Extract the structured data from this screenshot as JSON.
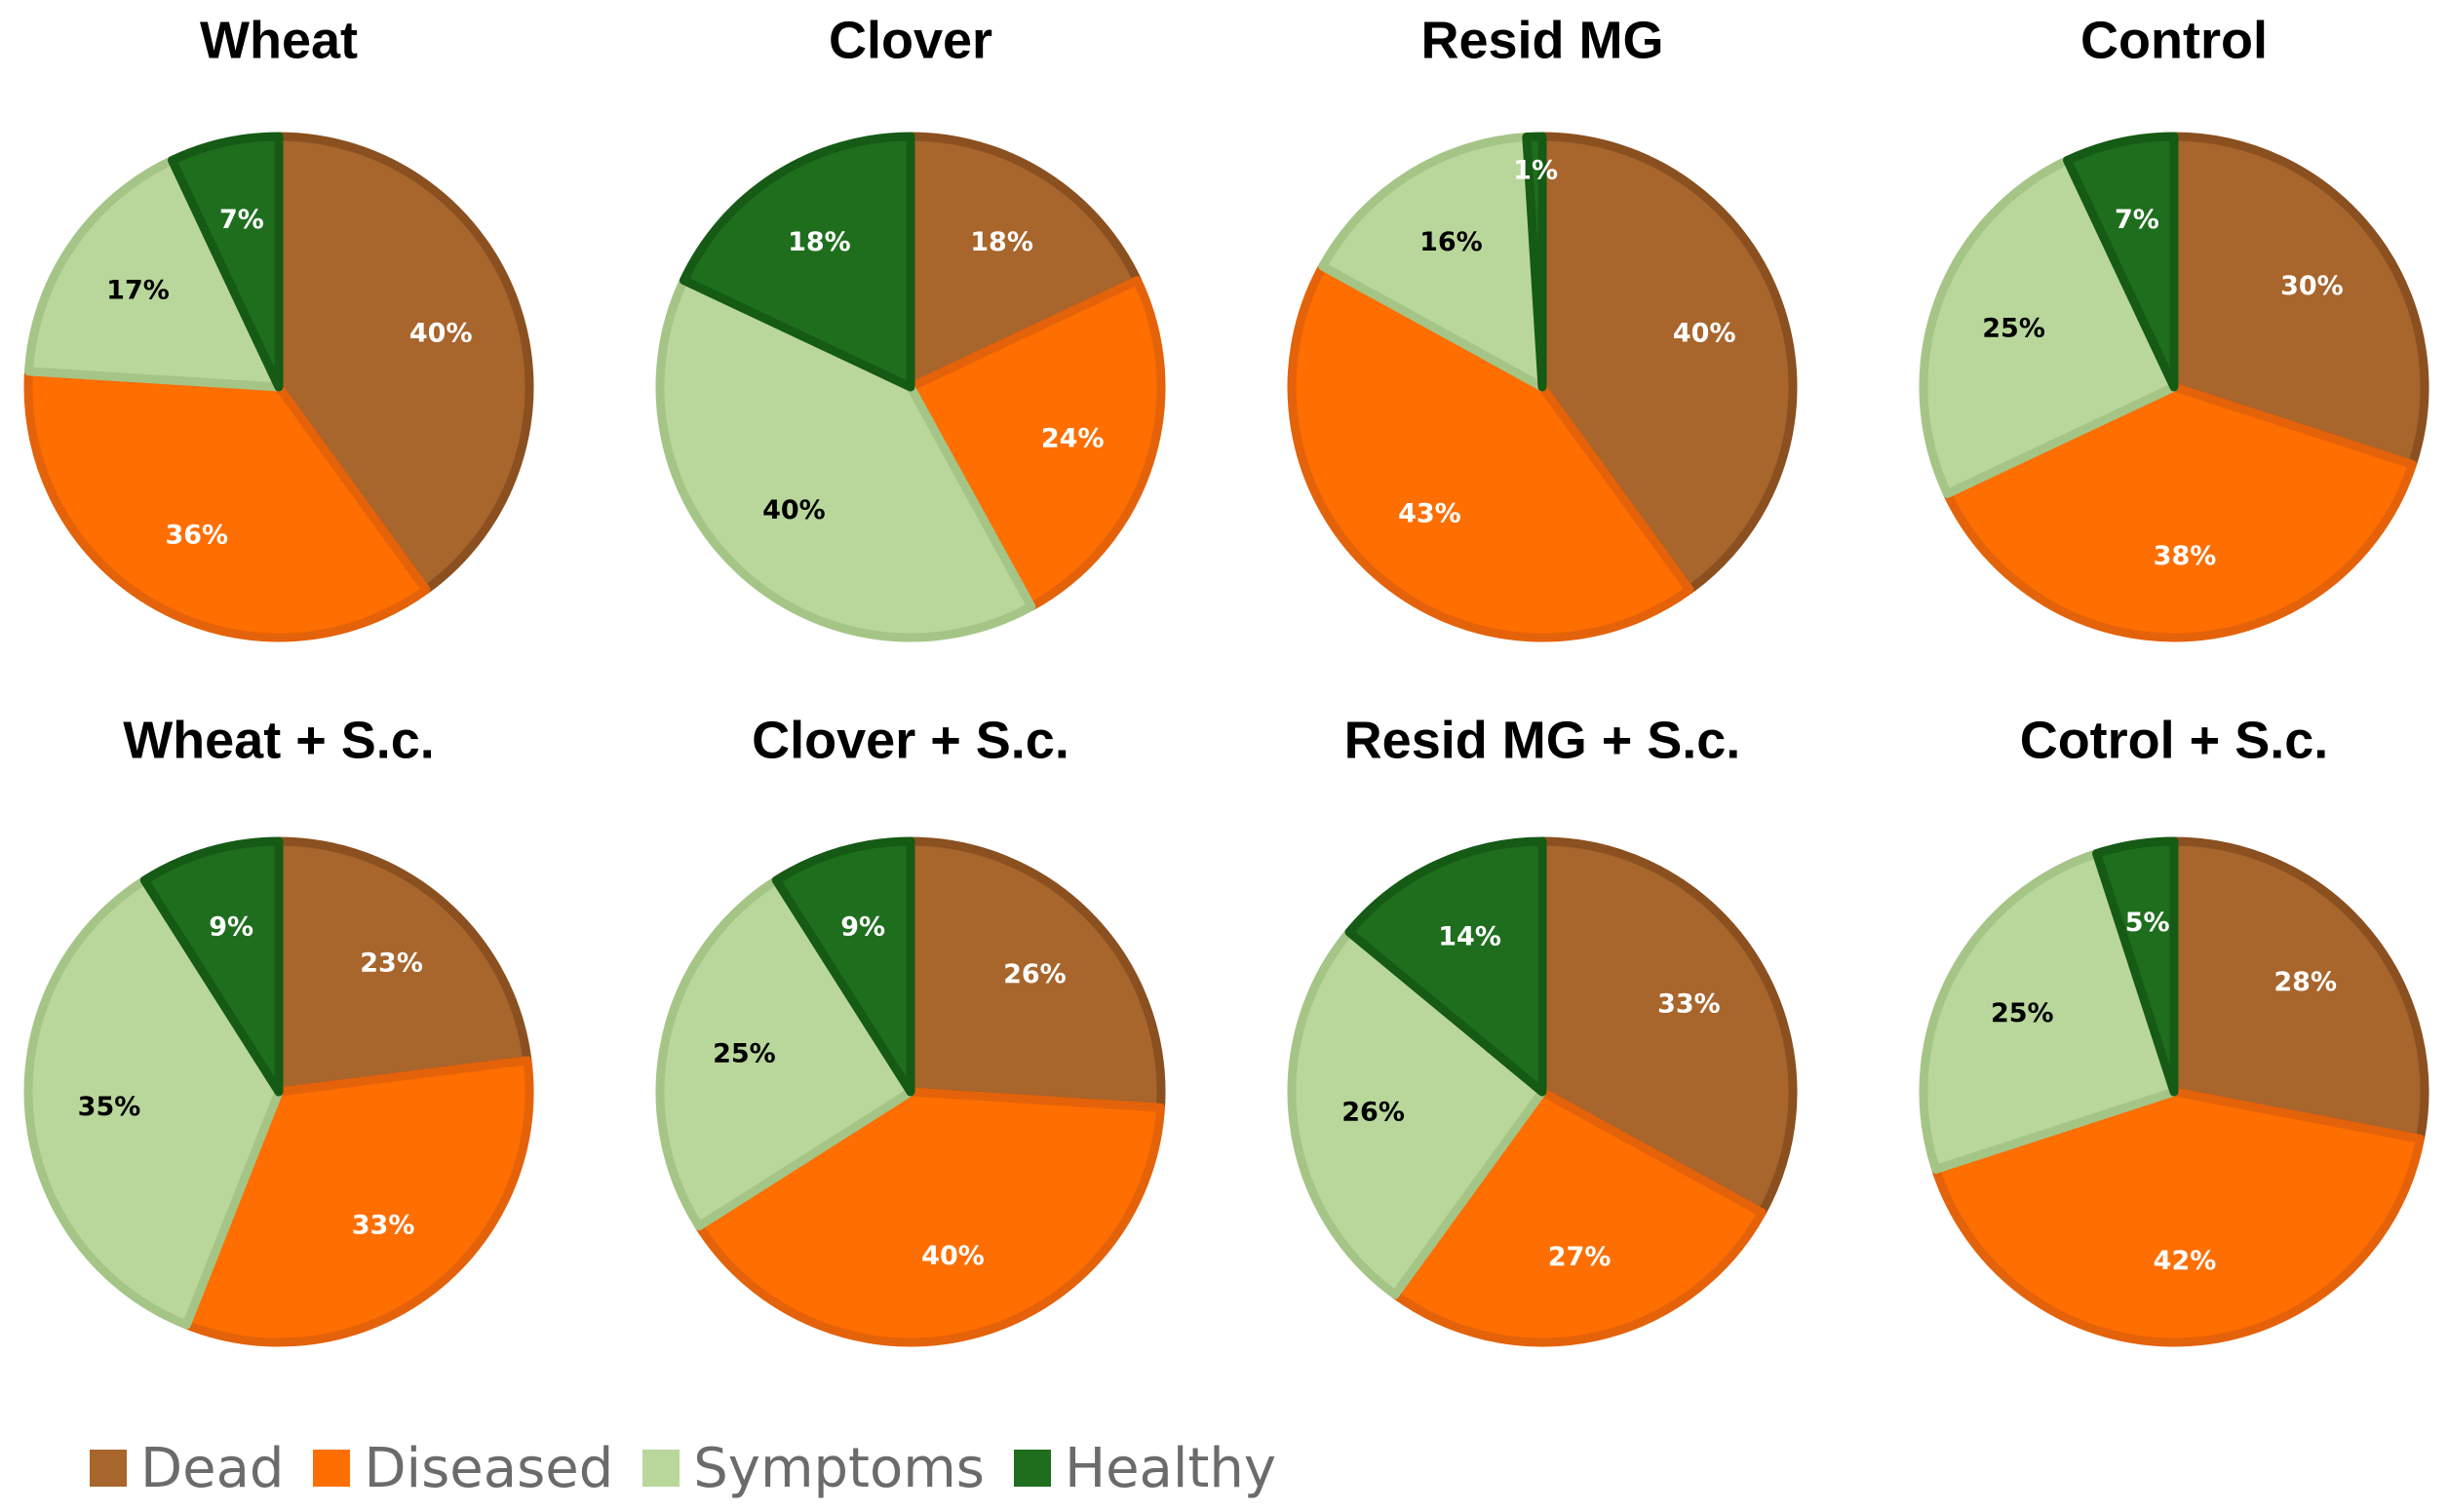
{
  "chart_data": {
    "type": "pie",
    "categories": [
      "Dead",
      "Diseased",
      "Symptoms",
      "Healthy"
    ],
    "colors": {
      "Dead": "#a8652c",
      "Diseased": "#ff6e00",
      "Symptoms": "#b9d79b",
      "Healthy": "#1e6e1e"
    },
    "border_colors": {
      "Dead": "#8a5020",
      "Diseased": "#e4620a",
      "Symptoms": "#a5c587",
      "Healthy": "#155a15"
    },
    "label_colors": {
      "Dead": "#ffffff",
      "Diseased": "#ffffff",
      "Symptoms": "#000000",
      "Healthy": "#ffffff"
    },
    "pies": [
      {
        "title": "Wheat",
        "values": [
          40,
          36,
          17,
          7
        ],
        "labels": [
          "40%",
          "36%",
          "17%",
          "7%"
        ]
      },
      {
        "title": "Clover",
        "values": [
          18,
          24,
          40,
          18
        ],
        "labels": [
          "18%",
          "24%",
          "40%",
          "18%"
        ]
      },
      {
        "title": "Resid MG",
        "values": [
          40,
          43,
          16,
          1
        ],
        "labels": [
          "40%",
          "43%",
          "16%",
          "1%"
        ]
      },
      {
        "title": "Control",
        "values": [
          30,
          38,
          25,
          7
        ],
        "labels": [
          "30%",
          "38%",
          "25%",
          "7%"
        ]
      },
      {
        "title": "Wheat + S.c.",
        "values": [
          23,
          33,
          35,
          9
        ],
        "labels": [
          "23%",
          "33%",
          "35%",
          "9%"
        ]
      },
      {
        "title": "Clover + S.c.",
        "values": [
          26,
          40,
          25,
          9
        ],
        "labels": [
          "26%",
          "40%",
          "25%",
          "9%"
        ]
      },
      {
        "title": "Resid MG + S.c.",
        "values": [
          33,
          27,
          26,
          14
        ],
        "labels": [
          "33%",
          "27%",
          "26%",
          "14%"
        ]
      },
      {
        "title": "Cotrol + S.c.",
        "values": [
          28,
          42,
          25,
          5
        ],
        "labels": [
          "28%",
          "42%",
          "25%",
          "5%"
        ]
      }
    ],
    "legend": {
      "position": "bottom-left",
      "items": [
        "Dead",
        "Diseased",
        "Symptoms",
        "Healthy"
      ]
    }
  }
}
